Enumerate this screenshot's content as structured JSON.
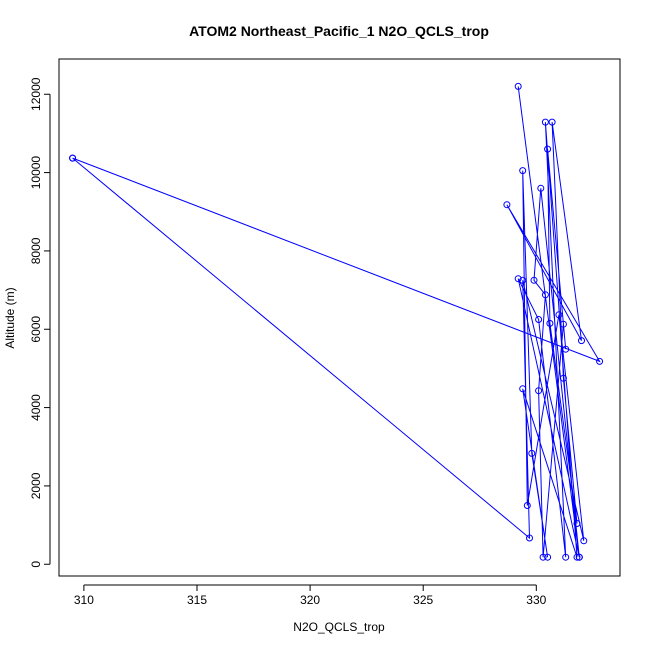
{
  "chart_data": {
    "type": "line",
    "title": "ATOM2 Northeast_Pacific_1 N2O_QCLS_trop",
    "xlabel": "N2O_QCLS_trop",
    "ylabel": "Altitude (m)",
    "xlim": [
      308.9,
      333.7
    ],
    "ylim": [
      -300,
      12900
    ],
    "xticks": [
      310,
      315,
      320,
      325,
      330
    ],
    "yticks": [
      0,
      2000,
      4000,
      6000,
      8000,
      10000,
      12000
    ],
    "grid": false,
    "legend": "none",
    "series_color": "#0000ff",
    "series": [
      {
        "points": [
          {
            "x": 309.5,
            "y": 10370
          },
          {
            "x": 332.8,
            "y": 5180
          },
          {
            "x": 328.7,
            "y": 9180
          },
          {
            "x": 332.0,
            "y": 5710
          },
          {
            "x": 330.7,
            "y": 11290
          },
          {
            "x": 331.2,
            "y": 4750
          },
          {
            "x": 331.8,
            "y": 1040
          },
          {
            "x": 330.6,
            "y": 6150
          },
          {
            "x": 330.5,
            "y": 10600
          },
          {
            "x": 331.3,
            "y": 5490
          },
          {
            "x": 331.2,
            "y": 6130
          },
          {
            "x": 330.3,
            "y": 180
          },
          {
            "x": 330.1,
            "y": 4430
          },
          {
            "x": 330.4,
            "y": 6880
          },
          {
            "x": 329.9,
            "y": 7250
          },
          {
            "x": 330.2,
            "y": 9600
          },
          {
            "x": 331.9,
            "y": 180
          },
          {
            "x": 329.2,
            "y": 12200
          },
          {
            "x": 331.9,
            "y": 180
          },
          {
            "x": 329.2,
            "y": 7290
          },
          {
            "x": 330.1,
            "y": 6250
          },
          {
            "x": 331.3,
            "y": 180
          },
          {
            "x": 330.4,
            "y": 11290
          },
          {
            "x": 331.8,
            "y": 180
          },
          {
            "x": 329.4,
            "y": 4480
          },
          {
            "x": 330.5,
            "y": 180
          },
          {
            "x": 329.8,
            "y": 2830
          },
          {
            "x": 329.4,
            "y": 10050
          },
          {
            "x": 329.6,
            "y": 1500
          },
          {
            "x": 331.0,
            "y": 6370
          },
          {
            "x": 332.1,
            "y": 600
          },
          {
            "x": 329.4,
            "y": 7250
          },
          {
            "x": 329.7,
            "y": 670
          },
          {
            "x": 309.5,
            "y": 10370
          }
        ]
      }
    ]
  }
}
